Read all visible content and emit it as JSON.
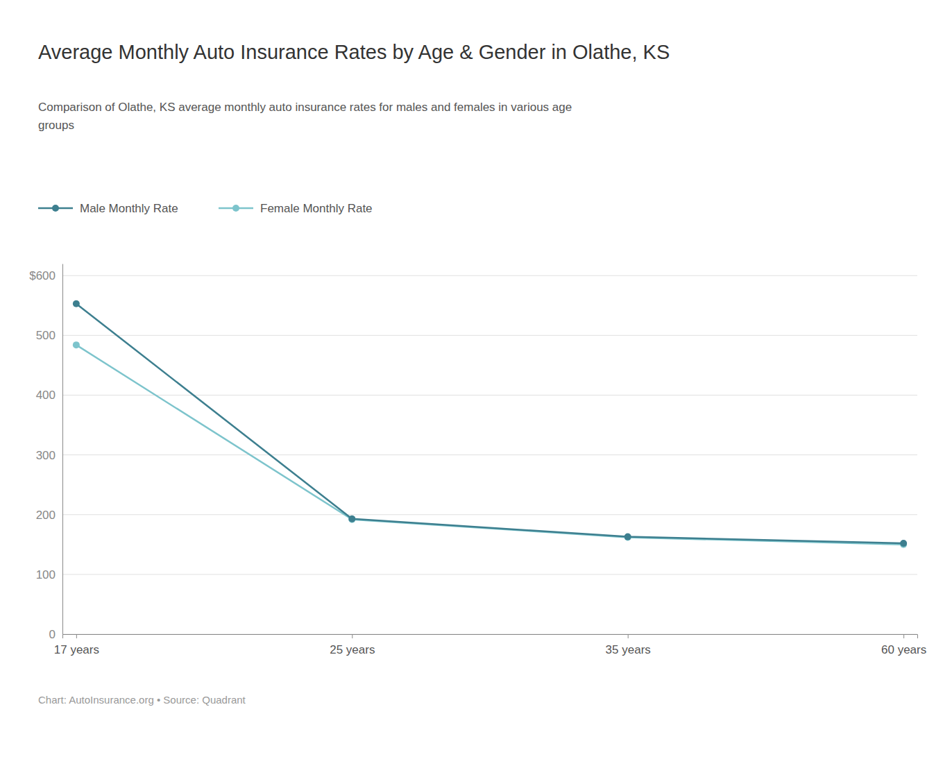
{
  "chart_data": {
    "type": "line",
    "title": "Average Monthly Auto Insurance Rates by Age & Gender in Olathe, KS",
    "subtitle": "Comparison of Olathe, KS average monthly auto insurance rates for males and females in various age\ngroups",
    "caption": "Chart: AutoInsurance.org • Source: Quadrant",
    "categories": [
      "17 years",
      "25 years",
      "35 years",
      "60 years"
    ],
    "series": [
      {
        "name": "Male Monthly Rate",
        "color": "#3d7f8f",
        "values": [
          553,
          193,
          163,
          152
        ]
      },
      {
        "name": "Female Monthly Rate",
        "color": "#7dc4cc",
        "values": [
          484,
          192,
          162,
          150
        ]
      }
    ],
    "ylim": [
      0,
      620
    ],
    "yticks": [
      0,
      100,
      200,
      300,
      400,
      500,
      {
        "value": 600,
        "label": "$600"
      }
    ],
    "grid": true,
    "legend": "top-left",
    "marker": "circle"
  }
}
